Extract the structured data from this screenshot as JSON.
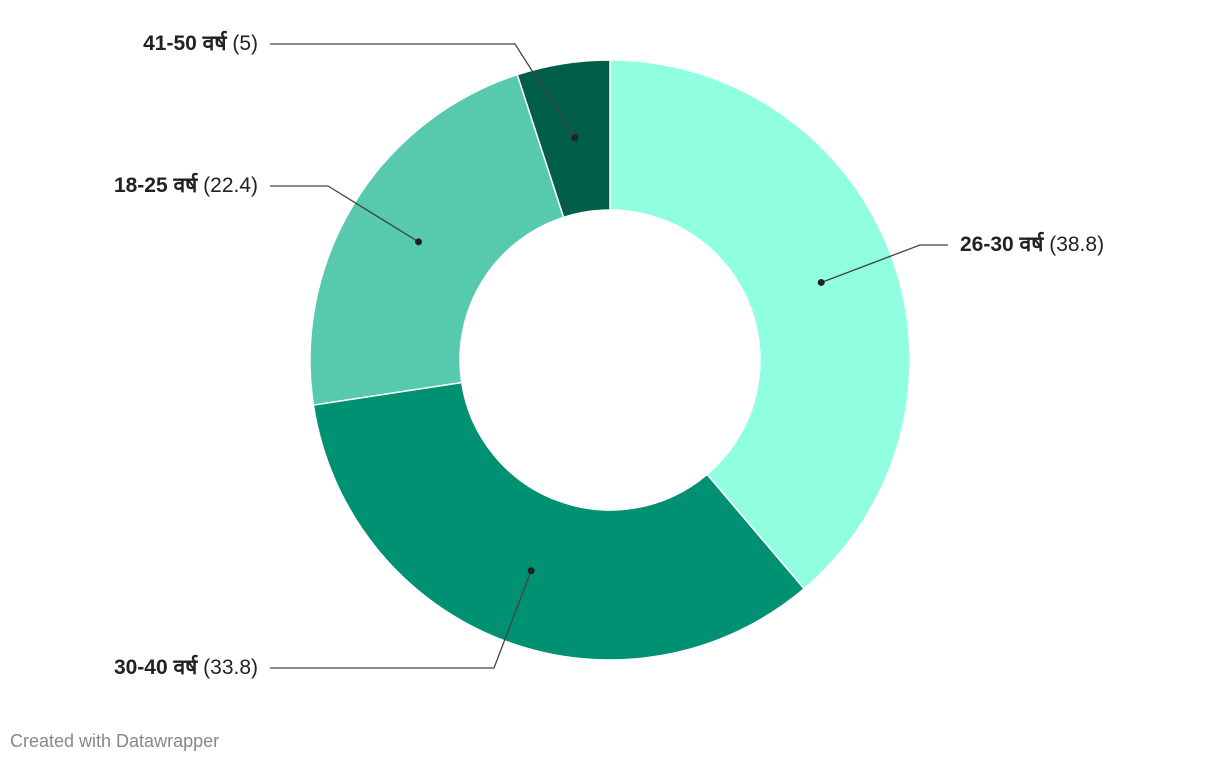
{
  "chart_data": {
    "type": "pie",
    "categories": [
      "26-30 वर्ष",
      "30-40 वर्ष",
      "18-25 वर्ष",
      "41-50 वर्ष"
    ],
    "values": [
      38.8,
      33.8,
      22.4,
      5
    ],
    "value_labels": [
      "(38.8)",
      "(33.8)",
      "(22.4)",
      "(5)"
    ],
    "colors": [
      "#8fffdf",
      "#009072",
      "#57c9ad",
      "#005d47"
    ],
    "footer": "Created with Datawrapper"
  }
}
